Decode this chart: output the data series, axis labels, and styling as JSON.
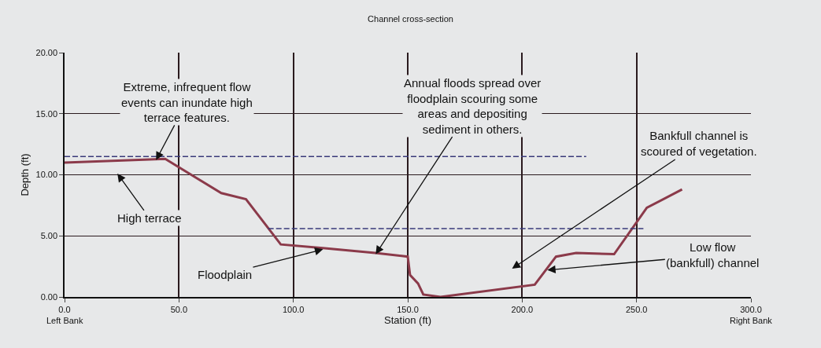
{
  "chart_data": {
    "type": "line",
    "title": "Channel cross-section",
    "xlabel": "Station (ft)",
    "ylabel": "Depth (ft)",
    "xlim": [
      0,
      300
    ],
    "ylim": [
      0,
      20
    ],
    "xticks": [
      {
        "value": 0,
        "label": "0.0"
      },
      {
        "value": 50,
        "label": "50.0"
      },
      {
        "value": 100,
        "label": "100.0"
      },
      {
        "value": 150,
        "label": "150.0"
      },
      {
        "value": 200,
        "label": "200.0"
      },
      {
        "value": 250,
        "label": "250.0"
      },
      {
        "value": 300,
        "label": "300.0"
      }
    ],
    "yticks": [
      {
        "value": 0,
        "label": "0.00"
      },
      {
        "value": 5,
        "label": "5.00"
      },
      {
        "value": 10,
        "label": "10.00"
      },
      {
        "value": 15,
        "label": "15.00"
      },
      {
        "value": 20,
        "label": "20.00"
      }
    ],
    "grid": true,
    "marker": "none",
    "series": [
      {
        "color": "#8b3a4a",
        "line_style": "solid",
        "x": [
          0,
          44,
          68.5,
          79.3,
          94.5,
          112.8,
          135.8,
          150,
          151,
          154.5,
          156.8,
          164.3,
          205.5,
          214.8,
          223.6,
          240.2,
          254.5,
          269.9
        ],
        "values": [
          11.0,
          11.3,
          8.5,
          8.0,
          4.3,
          4.0,
          3.6,
          3.3,
          1.8,
          1.1,
          0.2,
          0.0,
          1.0,
          3.3,
          3.6,
          3.5,
          7.3,
          8.8
        ]
      },
      {
        "color": "#3a3a7a",
        "line_style": "dashed",
        "x": [
          0,
          228
        ],
        "values": [
          11.5,
          11.5
        ]
      },
      {
        "color": "#3a3a7a",
        "line_style": "dashed",
        "x": [
          89,
          253
        ],
        "values": [
          5.6,
          5.6
        ]
      }
    ],
    "annotations": [
      {
        "text": "Extreme, infrequent flow\nevents can inundate high\nterrace features.",
        "x": 40,
        "y": 11.2
      },
      "High terrace",
      {
        "text": "Floodplain",
        "x": 113,
        "y": 3.9
      },
      {
        "text": "Annual floods spread over\nfloodplain scouring some\nareas and depositing\nsediment in others.",
        "x": 136,
        "y": 3.5
      },
      "Bankfull channel is\nscoured of vegetation.",
      {
        "text": "Low flow\n(bankfull) channel",
        "x": 211,
        "y": 2.2
      },
      "Left Bank",
      "Right Bank"
    ]
  }
}
